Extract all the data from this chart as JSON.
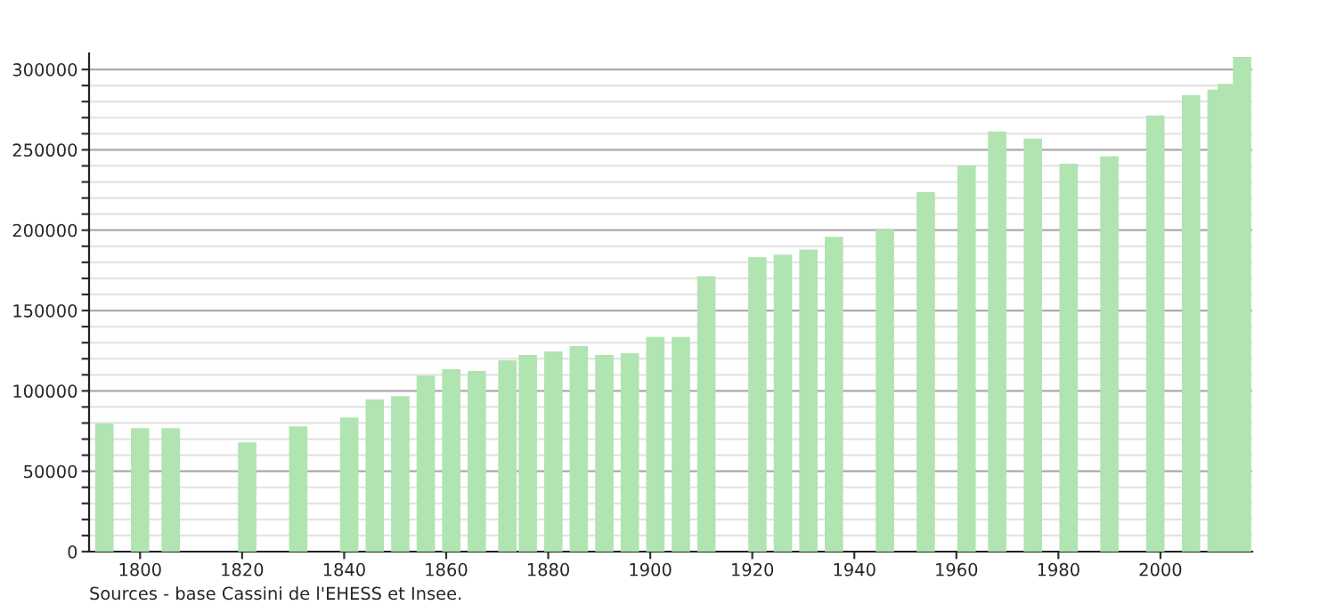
{
  "chart_data": {
    "type": "bar",
    "x": [
      1793,
      1800,
      1806,
      1821,
      1831,
      1841,
      1846,
      1851,
      1856,
      1861,
      1866,
      1872,
      1876,
      1881,
      1886,
      1891,
      1896,
      1901,
      1906,
      1911,
      1921,
      1926,
      1931,
      1936,
      1946,
      1954,
      1962,
      1968,
      1975,
      1982,
      1990,
      1999,
      2006,
      2011,
      2013,
      2016
    ],
    "series": [
      {
        "color": "#b0e4b0",
        "values": [
          79700,
          76800,
          76800,
          67900,
          77900,
          83400,
          94600,
          96800,
          109400,
          113500,
          112400,
          119000,
          122400,
          124600,
          127900,
          122400,
          123500,
          133500,
          133500,
          171300,
          183200,
          184700,
          188000,
          195800,
          200200,
          223600,
          240300,
          261400,
          257000,
          241400,
          245900,
          271400,
          284000,
          287400,
          291000,
          307800
        ]
      }
    ],
    "xlim": [
      1790,
      2018
    ],
    "xticks": [
      1800,
      1820,
      1840,
      1860,
      1880,
      1900,
      1920,
      1940,
      1960,
      1980,
      2000
    ],
    "ylim": [
      0,
      310000
    ],
    "yticks": [
      0,
      {
        "value": 10000,
        "label": null
      },
      {
        "value": 20000,
        "label": null
      },
      {
        "value": 30000,
        "label": null
      },
      {
        "value": 40000,
        "label": null
      },
      50000,
      {
        "value": 60000,
        "label": null
      },
      {
        "value": 70000,
        "label": null
      },
      {
        "value": 80000,
        "label": null
      },
      {
        "value": 90000,
        "label": null
      },
      100000,
      {
        "value": 110000,
        "label": null
      },
      {
        "value": 120000,
        "label": null
      },
      {
        "value": 130000,
        "label": null
      },
      {
        "value": 140000,
        "label": null
      },
      150000,
      {
        "value": 160000,
        "label": null
      },
      {
        "value": 170000,
        "label": null
      },
      {
        "value": 180000,
        "label": null
      },
      {
        "value": 190000,
        "label": null
      },
      200000,
      {
        "value": 210000,
        "label": null
      },
      {
        "value": 220000,
        "label": null
      },
      {
        "value": 230000,
        "label": null
      },
      {
        "value": 240000,
        "label": null
      },
      250000,
      {
        "value": 260000,
        "label": null
      },
      {
        "value": 270000,
        "label": null
      },
      {
        "value": 280000,
        "label": null
      },
      {
        "value": 290000,
        "label": null
      },
      300000
    ],
    "grid": "y",
    "legend": false,
    "annotations": [
      "Sources - base Cassini de l'EHESS et Insee."
    ]
  }
}
